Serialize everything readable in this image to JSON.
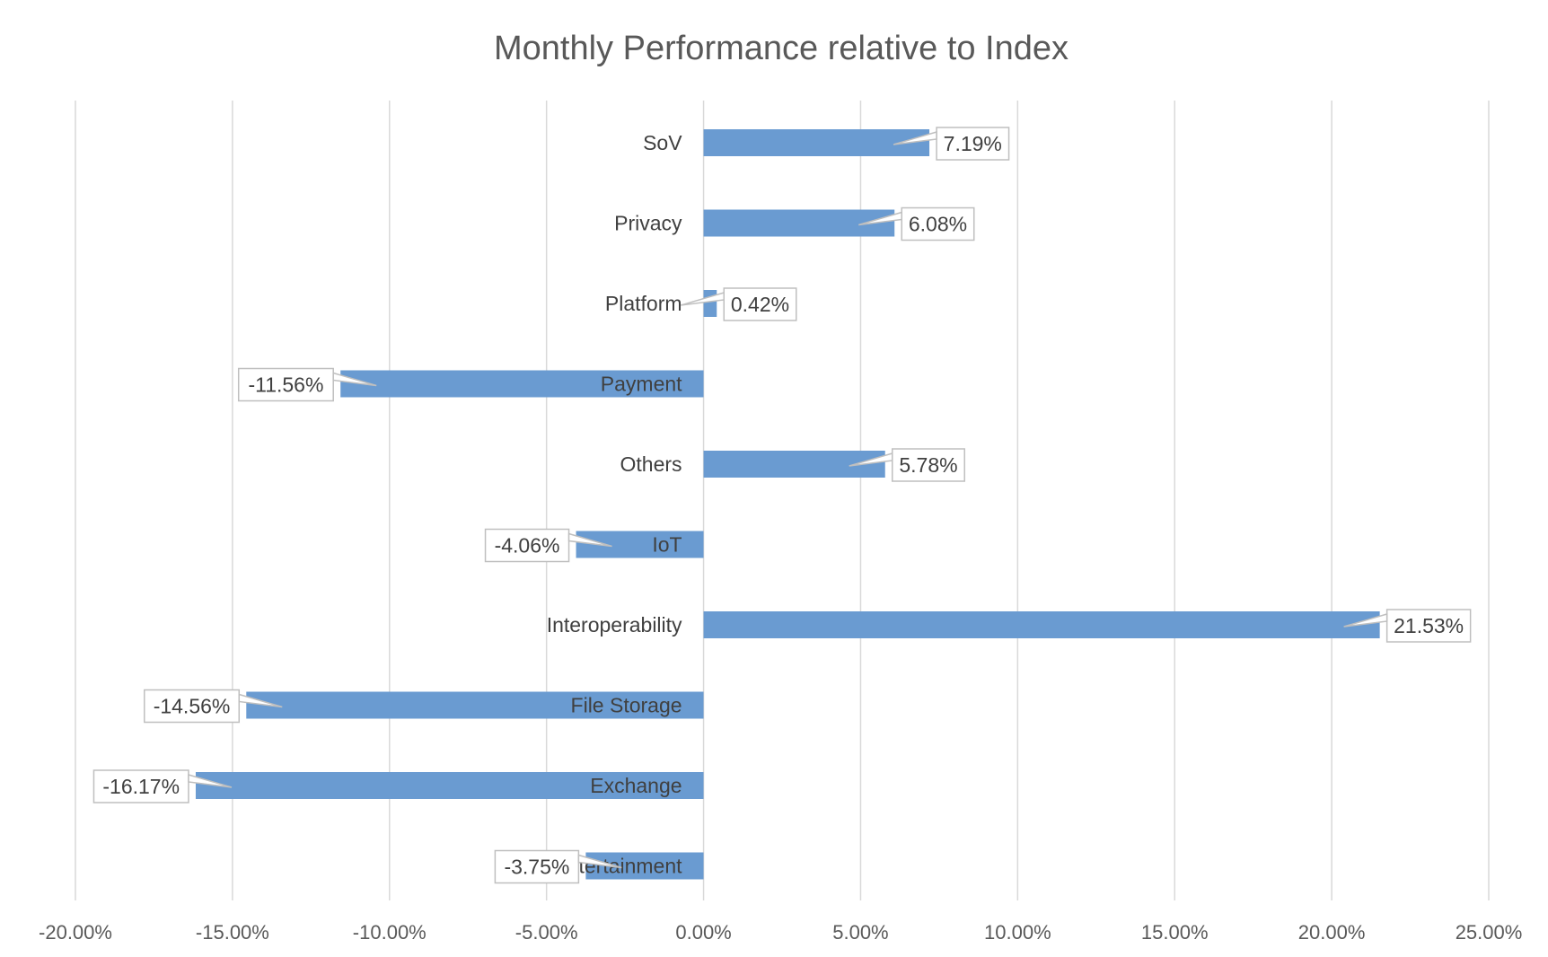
{
  "chart_data": {
    "type": "bar",
    "orientation": "horizontal",
    "title": "Monthly Performance relative to Index",
    "categories": [
      "SoV",
      "Privacy",
      "Platform",
      "Payment",
      "Others",
      "IoT",
      "Interoperability",
      "File Storage",
      "Exchange",
      "Entertainment"
    ],
    "series": [
      {
        "values": [
          7.19,
          6.08,
          0.42,
          -11.56,
          5.78,
          -4.06,
          21.53,
          -14.56,
          -16.17,
          -3.75
        ],
        "data_labels": [
          "7.19%",
          "6.08%",
          "0.42%",
          "-11.56%",
          "5.78%",
          "-4.06%",
          "21.53%",
          "-14.56%",
          "-16.17%",
          "-3.75%"
        ],
        "color": "#6a9bd1"
      }
    ],
    "xlim": [
      -20,
      25
    ],
    "x_ticks": [
      -20,
      -15,
      -10,
      -5,
      0,
      5,
      10,
      15,
      20,
      25
    ],
    "x_tick_labels": [
      "-20.00%",
      "-15.00%",
      "-10.00%",
      "-5.00%",
      "0.00%",
      "5.00%",
      "10.00%",
      "15.00%",
      "20.00%",
      "25.00%"
    ],
    "grid": true,
    "legend": "none",
    "data_label_style": "callout"
  }
}
